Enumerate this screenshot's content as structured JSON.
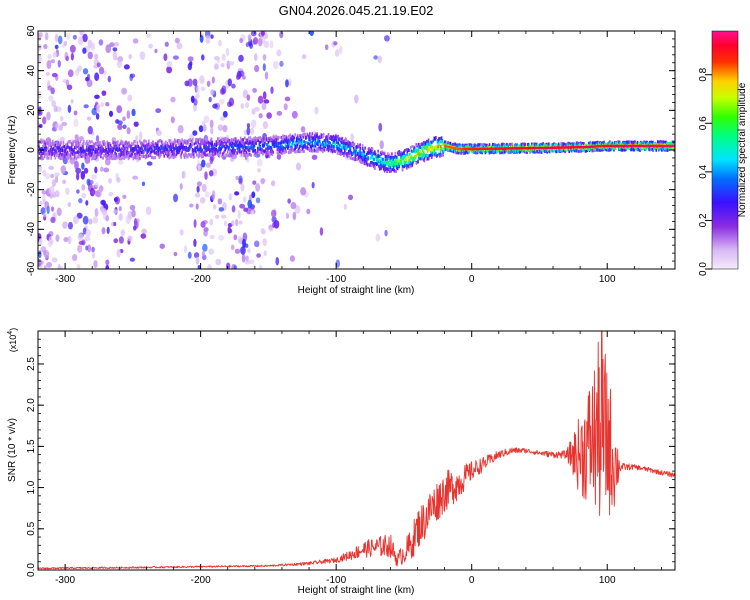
{
  "title": "GN04.2026.045.21.19.E02",
  "chart_data": [
    {
      "type": "heatmap",
      "name": "spectrogram",
      "xlabel": "Height of straight line (km)",
      "ylabel": "Frequency (Hz)",
      "xlim": [
        -320,
        150
      ],
      "ylim": [
        -60,
        60
      ],
      "xticks": [
        -300,
        -200,
        -100,
        0,
        100
      ],
      "xtick_labels": [
        "-300",
        "-200",
        "-100",
        "0",
        "100"
      ],
      "yticks": [
        -60,
        -40,
        -20,
        0,
        20,
        40,
        60
      ],
      "ytick_labels": [
        "-60",
        "-40",
        "-20",
        "0",
        "20",
        "40",
        "60"
      ],
      "colorbar": {
        "label": "Normalized spectral amplitude",
        "range": [
          0,
          0.98
        ],
        "ticks": [
          0,
          0.2,
          0.4,
          0.6,
          0.8
        ],
        "tick_labels": [
          "0.0",
          "0.2",
          "0.4",
          "0.6",
          "0.8"
        ],
        "colormap": "rainbow (white-violet-blue-cyan-green-yellow-red-magenta)"
      },
      "ridge": {
        "x": [
          -320,
          -250,
          -200,
          -150,
          -120,
          -100,
          -85,
          -70,
          -60,
          -50,
          -40,
          -30,
          -20,
          -10,
          0,
          50,
          85,
          95,
          100,
          150
        ],
        "freq": [
          0,
          0,
          1,
          2,
          4,
          3,
          -1,
          -5,
          -7,
          -5,
          -2,
          1,
          2,
          0.5,
          0.5,
          1,
          1.5,
          2,
          2,
          2
        ],
        "amplitude": [
          0.25,
          0.28,
          0.32,
          0.38,
          0.45,
          0.45,
          0.42,
          0.5,
          0.6,
          0.7,
          0.75,
          0.8,
          0.85,
          0.85,
          0.9,
          0.95,
          0.95,
          0.9,
          0.95,
          0.97
        ]
      }
    },
    {
      "type": "line",
      "name": "snr",
      "xlabel": "Height of straight line (km)",
      "ylabel": "SNR (10 * v/v)",
      "multiplier_label": "(x10",
      "multiplier_exponent": "4",
      "xlim": [
        -320,
        150
      ],
      "ylim": [
        0,
        2.9
      ],
      "xticks": [
        -300,
        -200,
        -100,
        0,
        100
      ],
      "xtick_labels": [
        "-300",
        "-200",
        "-100",
        "0",
        "100"
      ],
      "yticks": [
        0,
        0.5,
        1.0,
        1.5,
        2.0,
        2.5
      ],
      "ytick_labels": [
        "0.0",
        "0.5",
        "1.0",
        "1.5",
        "2.0",
        "2.5"
      ],
      "color": "#e8332e",
      "series": [
        {
          "name": "SNR",
          "x": [
            -320,
            -250,
            -200,
            -150,
            -120,
            -100,
            -90,
            -80,
            -70,
            -60,
            -55,
            -45,
            -40,
            -35,
            -30,
            -25,
            -20,
            -10,
            0,
            10,
            20,
            30,
            40,
            50,
            60,
            70,
            80,
            85,
            90,
            95,
            100,
            105,
            110,
            120,
            130,
            140,
            150
          ],
          "values": [
            0.02,
            0.03,
            0.04,
            0.05,
            0.08,
            0.12,
            0.18,
            0.25,
            0.28,
            0.3,
            0.12,
            0.3,
            0.5,
            0.6,
            0.75,
            0.85,
            0.95,
            1.05,
            1.2,
            1.3,
            1.4,
            1.45,
            1.45,
            1.42,
            1.4,
            1.4,
            1.4,
            1.5,
            1.6,
            1.7,
            1.6,
            1.3,
            1.25,
            1.25,
            1.22,
            1.18,
            1.15
          ],
          "noise": [
            0.01,
            0.01,
            0.01,
            0.01,
            0.02,
            0.03,
            0.06,
            0.1,
            0.12,
            0.15,
            0.08,
            0.2,
            0.25,
            0.25,
            0.25,
            0.25,
            0.25,
            0.2,
            0.12,
            0.08,
            0.05,
            0.04,
            0.03,
            0.03,
            0.04,
            0.05,
            0.5,
            0.7,
            0.9,
            1.2,
            1.0,
            0.6,
            0.05,
            0.03,
            0.03,
            0.03,
            0.03
          ],
          "peak": {
            "x": 96,
            "y": 2.9
          }
        }
      ]
    }
  ]
}
